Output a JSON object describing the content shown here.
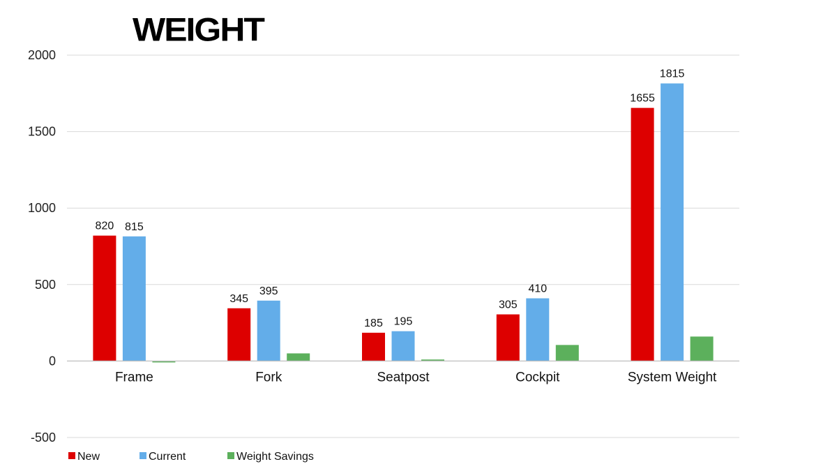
{
  "chart_data": {
    "type": "bar",
    "title": "WEIGHT",
    "categories": [
      "Frame",
      "Fork",
      "Seatpost",
      "Cockpit",
      "System Weight"
    ],
    "series": [
      {
        "name": "New",
        "color": "#dd0000",
        "values": [
          820,
          345,
          185,
          305,
          1655
        ],
        "labels": [
          "820",
          "345",
          "185",
          "305",
          "1655"
        ]
      },
      {
        "name": "Current",
        "color": "#63ade9",
        "values": [
          815,
          395,
          195,
          410,
          1815
        ],
        "labels": [
          "815",
          "395",
          "195",
          "410",
          "1815"
        ]
      },
      {
        "name": "Weight Savings",
        "color": "#5cb05c",
        "values": [
          -5,
          50,
          10,
          105,
          160
        ]
      }
    ],
    "ylim": [
      -500,
      2000
    ],
    "yticks": [
      -500,
      0,
      500,
      1000,
      1500,
      2000
    ],
    "ytick_labels": [
      "-500",
      "0",
      "500",
      "1000",
      "1500",
      "2000"
    ],
    "grid": true,
    "legend": "bottom-left"
  }
}
